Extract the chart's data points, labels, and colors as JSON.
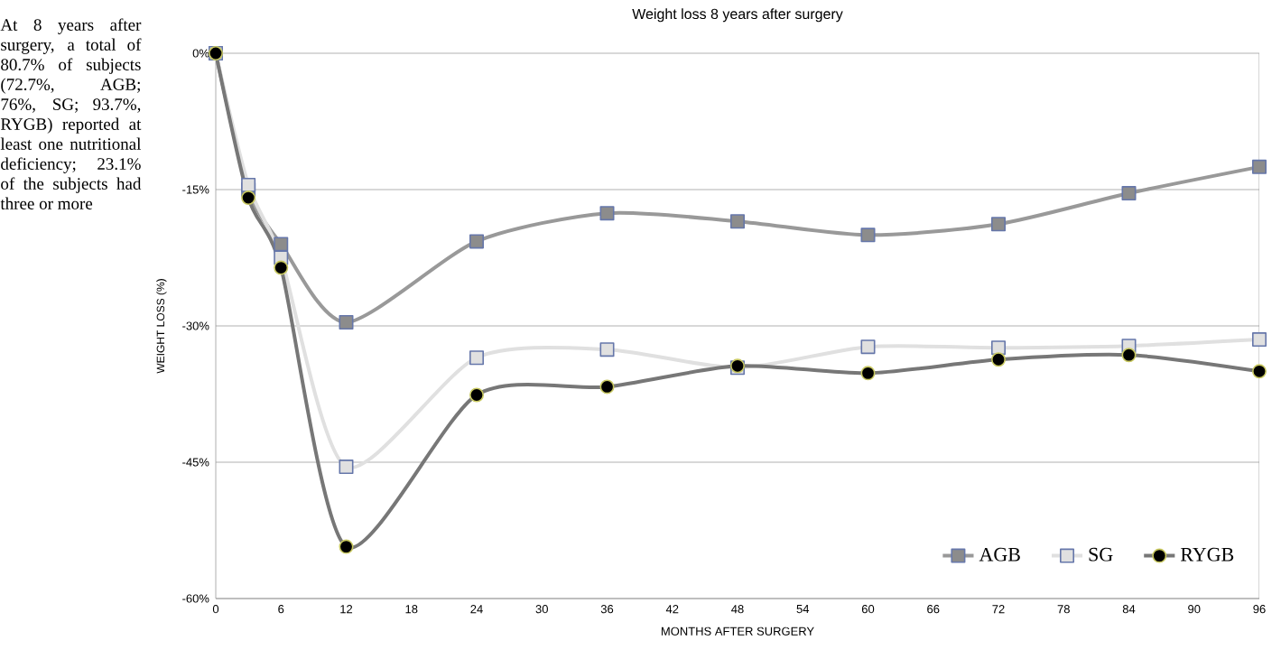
{
  "chart_data": {
    "type": "line",
    "title": "Weight loss 8 years after surgery",
    "xlabel": "MONTHS AFTER SURGERY",
    "ylabel": "WEIGHT LOSS (%)",
    "annotations": [
      "At 8 years after surgery, a total of 80.7% of subjects (72.7%, AGB; 76%, SG; 93.7%, RYGB) reported at least one nutritional deficiency; 23.1% of the subjects had three or more"
    ],
    "x": [
      0,
      3,
      6,
      12,
      24,
      36,
      48,
      60,
      72,
      84,
      96
    ],
    "series": [
      {
        "name": "AGB",
        "color": "#999999",
        "marker": "square",
        "values": [
          0,
          -15,
          -21,
          -29.6,
          -20.7,
          -17.6,
          -18.5,
          -20,
          -18.8,
          -15.4,
          -12.5
        ]
      },
      {
        "name": "SG",
        "color": "#e0e0e0",
        "marker": "square",
        "values": [
          0,
          -14.5,
          -22.5,
          -45.5,
          -33.5,
          -32.6,
          -34.6,
          -32.3,
          -32.4,
          -32.2,
          -31.5
        ]
      },
      {
        "name": "RYGB",
        "color": "#777777",
        "marker": "circle",
        "values": [
          0,
          -15.9,
          -23.6,
          -54.3,
          -37.6,
          -36.7,
          -34.4,
          -35.2,
          -33.7,
          -33.2,
          -35.0
        ]
      }
    ],
    "xlim": [
      0,
      96
    ],
    "xticks": [
      0,
      6,
      12,
      18,
      24,
      30,
      36,
      42,
      48,
      54,
      60,
      66,
      72,
      78,
      84,
      90,
      96
    ],
    "ylim": [
      -60,
      0
    ],
    "yticks": [
      {
        "value": 0,
        "label": "0%"
      },
      {
        "value": -15,
        "label": "-15%"
      },
      {
        "value": -30,
        "label": "-30%"
      },
      {
        "value": -45,
        "label": "-45%"
      },
      {
        "value": -60,
        "label": "-60%"
      }
    ],
    "grid": "y",
    "legend": "bottom right"
  }
}
